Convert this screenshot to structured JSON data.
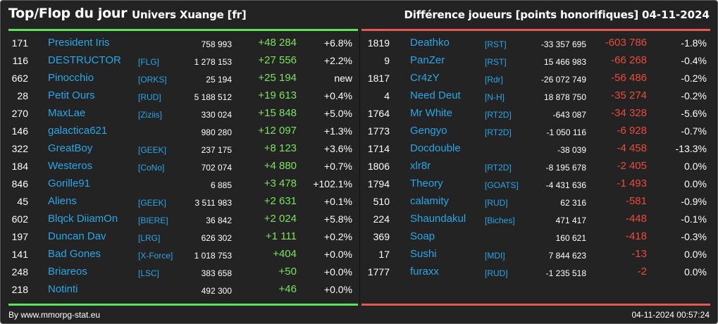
{
  "header": {
    "title": "Top/Flop du jour",
    "universe": "Univers Xuange [fr]",
    "metric": "Différence joueurs [points honorifiques]",
    "date": "04-11-2024"
  },
  "colors": {
    "background": "#232323",
    "top_accent": "#5ee35e",
    "flop_accent": "#e8574f",
    "name_link": "#2ba6e8",
    "gain": "#7de25e",
    "loss": "#ec4b3c"
  },
  "top": [
    {
      "rank": "171",
      "name": "President Iris",
      "tag": "",
      "total": "758 993",
      "diff": "+48 284",
      "pct": "+6.8%"
    },
    {
      "rank": "116",
      "name": "DESTRUCTOR",
      "tag": "[FLG]",
      "total": "1 278 153",
      "diff": "+27 556",
      "pct": "+2.2%"
    },
    {
      "rank": "662",
      "name": "Pinocchio",
      "tag": "[ORKS]",
      "total": "25 194",
      "diff": "+25 194",
      "pct": "new"
    },
    {
      "rank": "28",
      "name": "Petit Ours",
      "tag": "[RUD]",
      "total": "5 188 512",
      "diff": "+19 613",
      "pct": "+0.4%"
    },
    {
      "rank": "270",
      "name": "MaxLae",
      "tag": "[Ziziis]",
      "total": "330 024",
      "diff": "+15 848",
      "pct": "+5.0%"
    },
    {
      "rank": "146",
      "name": "galactica621",
      "tag": "",
      "total": "980 280",
      "diff": "+12 097",
      "pct": "+1.3%"
    },
    {
      "rank": "322",
      "name": "GreatBoy",
      "tag": "[GEEK]",
      "total": "237 175",
      "diff": "+8 123",
      "pct": "+3.6%"
    },
    {
      "rank": "184",
      "name": "Westeros",
      "tag": "[CoNo]",
      "total": "702 074",
      "diff": "+4 880",
      "pct": "+0.7%"
    },
    {
      "rank": "846",
      "name": "Gorille91",
      "tag": "",
      "total": "6 885",
      "diff": "+3 478",
      "pct": "+102.1%"
    },
    {
      "rank": "45",
      "name": "Aliens",
      "tag": "[GEEK]",
      "total": "3 511 983",
      "diff": "+2 631",
      "pct": "+0.1%"
    },
    {
      "rank": "602",
      "name": "Blqck DiiamOn",
      "tag": "[BIERE]",
      "total": "36 842",
      "diff": "+2 024",
      "pct": "+5.8%"
    },
    {
      "rank": "197",
      "name": "Duncan Dav",
      "tag": "[LRG]",
      "total": "626 302",
      "diff": "+1 111",
      "pct": "+0.2%"
    },
    {
      "rank": "141",
      "name": "Bad Gones",
      "tag": "[X-Force]",
      "total": "1 018 753",
      "diff": "+404",
      "pct": "+0.0%"
    },
    {
      "rank": "248",
      "name": "Briareos",
      "tag": "[LSC]",
      "total": "383 658",
      "diff": "+50",
      "pct": "+0.0%"
    },
    {
      "rank": "218",
      "name": "Notinti",
      "tag": "",
      "total": "492 300",
      "diff": "+46",
      "pct": "+0.0%"
    }
  ],
  "flop": [
    {
      "rank": "1819",
      "name": "Deathko",
      "tag": "[RST]",
      "total": "-33 357 695",
      "diff": "-603 786",
      "pct": "-1.8%"
    },
    {
      "rank": "9",
      "name": "PanZer",
      "tag": "[RST]",
      "total": "15 466 983",
      "diff": "-66 268",
      "pct": "-0.4%"
    },
    {
      "rank": "1817",
      "name": "Cr4zY",
      "tag": "[Rdr]",
      "total": "-26 072 749",
      "diff": "-56 486",
      "pct": "-0.2%"
    },
    {
      "rank": "4",
      "name": "Need Deut",
      "tag": "[N-H]",
      "total": "18 878 750",
      "diff": "-35 274",
      "pct": "-0.2%"
    },
    {
      "rank": "1764",
      "name": "Mr White",
      "tag": "[RT2D]",
      "total": "-643 087",
      "diff": "-34 328",
      "pct": "-5.6%"
    },
    {
      "rank": "1773",
      "name": "Gengyo",
      "tag": "[RT2D]",
      "total": "-1 050 116",
      "diff": "-6 928",
      "pct": "-0.7%"
    },
    {
      "rank": "1714",
      "name": "Docdouble",
      "tag": "",
      "total": "-38 039",
      "diff": "-4 458",
      "pct": "-13.3%"
    },
    {
      "rank": "1806",
      "name": "xlr8r",
      "tag": "[RT2D]",
      "total": "-8 195 678",
      "diff": "-2 405",
      "pct": "0.0%"
    },
    {
      "rank": "1794",
      "name": "Theory",
      "tag": "[GOATS]",
      "total": "-4 431 636",
      "diff": "-1 493",
      "pct": "0.0%"
    },
    {
      "rank": "510",
      "name": "calamity",
      "tag": "[RUD]",
      "total": "62 316",
      "diff": "-581",
      "pct": "-0.9%"
    },
    {
      "rank": "224",
      "name": "Shaundakul",
      "tag": "[Biches]",
      "total": "471 417",
      "diff": "-448",
      "pct": "-0.1%"
    },
    {
      "rank": "369",
      "name": "Soap",
      "tag": "",
      "total": "160 621",
      "diff": "-418",
      "pct": "-0.3%"
    },
    {
      "rank": "17",
      "name": "Sushi",
      "tag": "[MDI]",
      "total": "7 844 623",
      "diff": "-13",
      "pct": "0.0%"
    },
    {
      "rank": "1777",
      "name": "furaxx",
      "tag": "[RUD]",
      "total": "-1 235 518",
      "diff": "-2",
      "pct": "0.0%"
    }
  ],
  "footer": {
    "source": "By www.mmorpg-stat.eu",
    "timestamp": "04-11-2024 00:57:24"
  }
}
